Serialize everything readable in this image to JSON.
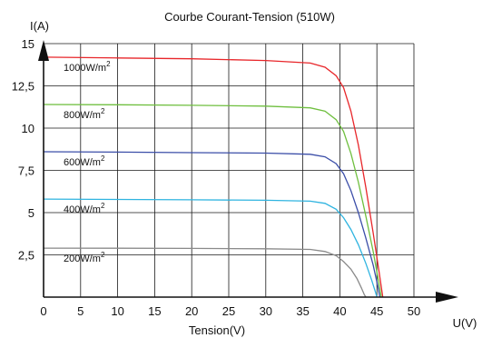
{
  "chart_data": {
    "type": "line",
    "title": "Courbe Courant-Tension (510W)",
    "xlabel": "Tension(V)",
    "ylabel": "I(A)",
    "xlabel_arrow": "U(V)",
    "xlim": [
      0,
      50
    ],
    "ylim": [
      0,
      15
    ],
    "x_ticks": [
      "0",
      "5",
      "10",
      "15",
      "20",
      "25",
      "30",
      "35",
      "40",
      "45",
      "50"
    ],
    "y_ticks": [
      "2,5",
      "5",
      "7,5",
      "10",
      "12,5",
      "15"
    ],
    "grid": true,
    "series": [
      {
        "name": "1000W/m",
        "sup": "2",
        "color": "#e8262a",
        "points": [
          [
            0,
            14.2
          ],
          [
            10,
            14.15
          ],
          [
            20,
            14.1
          ],
          [
            30,
            14.0
          ],
          [
            36,
            13.85
          ],
          [
            38,
            13.6
          ],
          [
            39.5,
            13.1
          ],
          [
            40.5,
            12.4
          ],
          [
            41.5,
            11.0
          ],
          [
            42.5,
            9.0
          ],
          [
            43.5,
            6.5
          ],
          [
            44.5,
            3.8
          ],
          [
            45.3,
            1.5
          ],
          [
            45.8,
            0
          ]
        ]
      },
      {
        "name": "800W/m",
        "sup": "2",
        "color": "#6fbf3f",
        "points": [
          [
            0,
            11.4
          ],
          [
            10,
            11.38
          ],
          [
            20,
            11.35
          ],
          [
            30,
            11.3
          ],
          [
            36,
            11.2
          ],
          [
            38,
            11.0
          ],
          [
            39.5,
            10.5
          ],
          [
            40.5,
            9.8
          ],
          [
            41.5,
            8.5
          ],
          [
            42.5,
            6.8
          ],
          [
            43.5,
            4.8
          ],
          [
            44.5,
            2.7
          ],
          [
            45.2,
            1.0
          ],
          [
            45.6,
            0
          ]
        ]
      },
      {
        "name": "600W/m",
        "sup": "2",
        "color": "#3b4ea8",
        "points": [
          [
            0,
            8.6
          ],
          [
            10,
            8.58
          ],
          [
            20,
            8.55
          ],
          [
            30,
            8.52
          ],
          [
            36,
            8.45
          ],
          [
            38,
            8.3
          ],
          [
            39.5,
            7.9
          ],
          [
            40.5,
            7.3
          ],
          [
            41.5,
            6.3
          ],
          [
            42.5,
            5.0
          ],
          [
            43.5,
            3.5
          ],
          [
            44.5,
            1.9
          ],
          [
            45.1,
            0.7
          ],
          [
            45.4,
            0
          ]
        ]
      },
      {
        "name": "400W/m",
        "sup": "2",
        "color": "#2fb4e0",
        "points": [
          [
            0,
            5.8
          ],
          [
            10,
            5.78
          ],
          [
            20,
            5.76
          ],
          [
            30,
            5.73
          ],
          [
            36,
            5.68
          ],
          [
            38,
            5.55
          ],
          [
            39.5,
            5.2
          ],
          [
            40.5,
            4.7
          ],
          [
            41.5,
            4.0
          ],
          [
            42.5,
            3.1
          ],
          [
            43.5,
            2.0
          ],
          [
            44.3,
            1.0
          ],
          [
            44.8,
            0.3
          ],
          [
            45.0,
            0
          ]
        ]
      },
      {
        "name": "200W/m",
        "sup": "2",
        "color": "#8a8a8a",
        "points": [
          [
            0,
            2.9
          ],
          [
            10,
            2.89
          ],
          [
            20,
            2.88
          ],
          [
            30,
            2.86
          ],
          [
            36,
            2.82
          ],
          [
            38,
            2.7
          ],
          [
            39.5,
            2.45
          ],
          [
            40.5,
            2.1
          ],
          [
            41.5,
            1.65
          ],
          [
            42.3,
            1.1
          ],
          [
            42.9,
            0.55
          ],
          [
            43.3,
            0.15
          ],
          [
            43.5,
            0
          ]
        ]
      }
    ]
  }
}
